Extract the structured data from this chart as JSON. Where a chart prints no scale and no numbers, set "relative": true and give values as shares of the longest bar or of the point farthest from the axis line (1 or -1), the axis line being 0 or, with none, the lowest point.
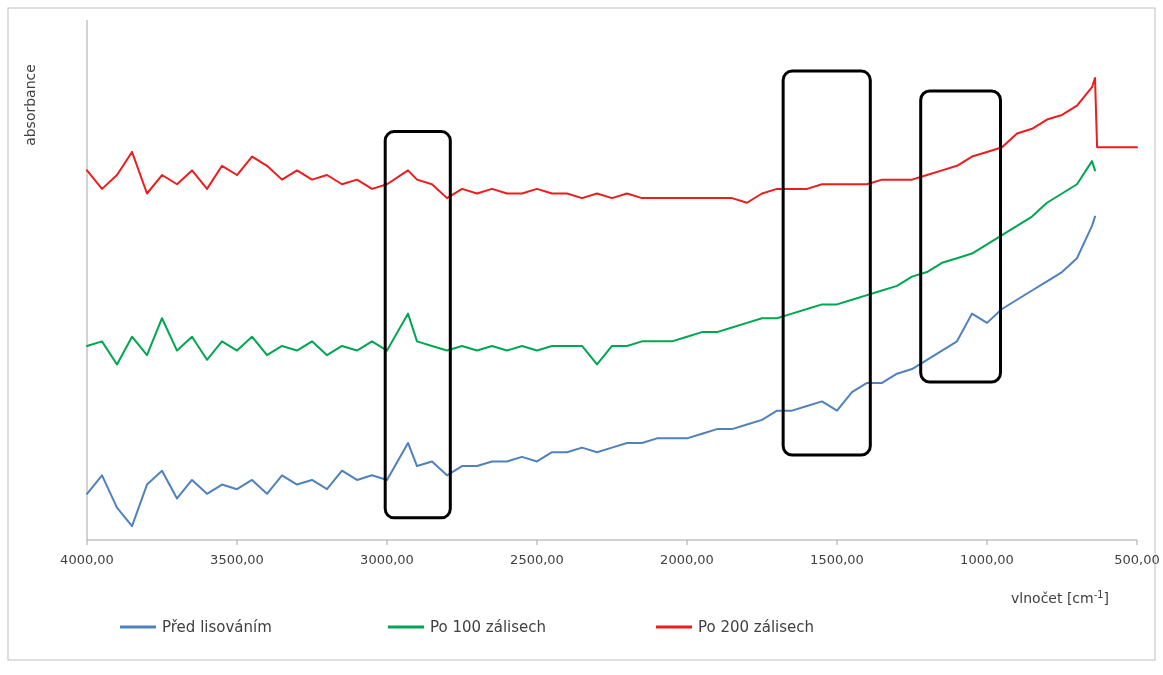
{
  "chart_data": {
    "type": "line",
    "xlabel": "vlnočet [cm$^{-1}$]",
    "ylabel": "absorbance",
    "relative": true,
    "legend": "bottom",
    "xlim": [
      4000,
      500
    ],
    "xticks": [
      {
        "value": 4000,
        "label": "4000,00"
      },
      {
        "value": 3500,
        "label": "3500,00"
      },
      {
        "value": 3000,
        "label": "3000,00"
      },
      {
        "value": 2500,
        "label": "2500,00"
      },
      {
        "value": 2000,
        "label": "2000,00"
      },
      {
        "value": 1500,
        "label": "1500,00"
      },
      {
        "value": 1000,
        "label": "1000,00"
      },
      {
        "value": 500,
        "label": "500,00"
      }
    ],
    "x": [
      4000,
      3950,
      3900,
      3850,
      3800,
      3750,
      3700,
      3650,
      3600,
      3550,
      3500,
      3450,
      3400,
      3350,
      3300,
      3250,
      3200,
      3150,
      3100,
      3050,
      3000,
      2930,
      2900,
      2850,
      2800,
      2750,
      2700,
      2650,
      2600,
      2550,
      2500,
      2450,
      2400,
      2350,
      2300,
      2250,
      2200,
      2150,
      2100,
      2050,
      2000,
      1950,
      1900,
      1850,
      1800,
      1750,
      1700,
      1650,
      1600,
      1550,
      1500,
      1450,
      1400,
      1350,
      1300,
      1250,
      1200,
      1150,
      1100,
      1050,
      1000,
      950,
      900,
      850,
      800,
      750,
      700,
      650,
      640
    ],
    "series": [
      {
        "name": "Před lisováním",
        "color": "#4f81bd",
        "values": [
          0.1,
          0.14,
          0.07,
          0.03,
          0.12,
          0.15,
          0.09,
          0.13,
          0.1,
          0.12,
          0.11,
          0.13,
          0.1,
          0.14,
          0.12,
          0.13,
          0.11,
          0.15,
          0.13,
          0.14,
          0.13,
          0.21,
          0.16,
          0.17,
          0.14,
          0.16,
          0.16,
          0.17,
          0.17,
          0.18,
          0.17,
          0.19,
          0.19,
          0.2,
          0.19,
          0.2,
          0.21,
          0.21,
          0.22,
          0.22,
          0.22,
          0.23,
          0.24,
          0.24,
          0.25,
          0.26,
          0.28,
          0.28,
          0.29,
          0.3,
          0.28,
          0.32,
          0.34,
          0.34,
          0.36,
          0.37,
          0.39,
          0.41,
          0.43,
          0.49,
          0.47,
          0.5,
          0.52,
          0.54,
          0.56,
          0.58,
          0.61,
          0.68,
          0.7
        ]
      },
      {
        "name": "Po 100 zálisech",
        "color": "#00a651",
        "values": [
          0.42,
          0.43,
          0.38,
          0.44,
          0.4,
          0.48,
          0.41,
          0.44,
          0.39,
          0.43,
          0.41,
          0.44,
          0.4,
          0.42,
          0.41,
          0.43,
          0.4,
          0.42,
          0.41,
          0.43,
          0.41,
          0.49,
          0.43,
          0.42,
          0.41,
          0.42,
          0.41,
          0.42,
          0.41,
          0.42,
          0.41,
          0.42,
          0.42,
          0.42,
          0.38,
          0.42,
          0.42,
          0.43,
          0.43,
          0.43,
          0.44,
          0.45,
          0.45,
          0.46,
          0.47,
          0.48,
          0.48,
          0.49,
          0.5,
          0.51,
          0.51,
          0.52,
          0.53,
          0.54,
          0.55,
          0.57,
          0.58,
          0.6,
          0.61,
          0.62,
          0.64,
          0.66,
          0.68,
          0.7,
          0.73,
          0.75,
          0.77,
          0.82,
          0.8
        ]
      },
      {
        "name": "Po 200 zálisech",
        "color": "#ee1c1c",
        "x": [
          4000,
          3950,
          3900,
          3850,
          3800,
          3750,
          3700,
          3650,
          3600,
          3550,
          3500,
          3450,
          3400,
          3350,
          3300,
          3250,
          3200,
          3150,
          3100,
          3050,
          3000,
          2930,
          2900,
          2850,
          2800,
          2750,
          2700,
          2650,
          2600,
          2550,
          2500,
          2450,
          2400,
          2350,
          2300,
          2250,
          2200,
          2150,
          2100,
          2050,
          2000,
          1950,
          1900,
          1850,
          1800,
          1750,
          1700,
          1650,
          1600,
          1550,
          1500,
          1450,
          1400,
          1350,
          1300,
          1250,
          1200,
          1150,
          1100,
          1050,
          1000,
          950,
          900,
          850,
          800,
          750,
          700,
          650,
          640,
          633,
          500
        ],
        "values": [
          0.8,
          0.76,
          0.79,
          0.84,
          0.75,
          0.79,
          0.77,
          0.8,
          0.76,
          0.81,
          0.79,
          0.83,
          0.81,
          0.78,
          0.8,
          0.78,
          0.79,
          0.77,
          0.78,
          0.76,
          0.77,
          0.8,
          0.78,
          0.77,
          0.74,
          0.76,
          0.75,
          0.76,
          0.75,
          0.75,
          0.76,
          0.75,
          0.75,
          0.74,
          0.75,
          0.74,
          0.75,
          0.74,
          0.74,
          0.74,
          0.74,
          0.74,
          0.74,
          0.74,
          0.73,
          0.75,
          0.76,
          0.76,
          0.76,
          0.77,
          0.77,
          0.77,
          0.77,
          0.78,
          0.78,
          0.78,
          0.79,
          0.8,
          0.81,
          0.83,
          0.84,
          0.85,
          0.88,
          0.89,
          0.91,
          0.92,
          0.94,
          0.98,
          1.0,
          0.85,
          0.85
        ]
      }
    ]
  }
}
